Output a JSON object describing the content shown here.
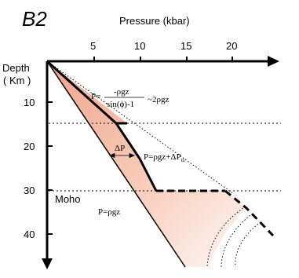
{
  "panel_label": "B2",
  "axes": {
    "x_title": "Pressure (kbar)",
    "x_ticks": [
      "5",
      "10",
      "15",
      "20"
    ],
    "y_title_line1": "Depth",
    "y_title_line2": "( Km )",
    "y_ticks": [
      "10",
      "20",
      "30",
      "40"
    ]
  },
  "labels": {
    "moho": "Moho",
    "lithostatic": "P=ρgz",
    "eq_top_lhs": "P=",
    "eq_top_num": "-ρgz",
    "eq_top_den": "sin(ϕ)-1",
    "eq_top_rhs": "~2ρgz",
    "eq_mid": "P=ρgz+ΔP",
    "eq_mid_sub": "ts",
    "delta_p": "ΔP"
  },
  "colors": {
    "fill_dark": "#f0a58c",
    "fill_light": "#fdebe3",
    "line": "#000000"
  }
}
